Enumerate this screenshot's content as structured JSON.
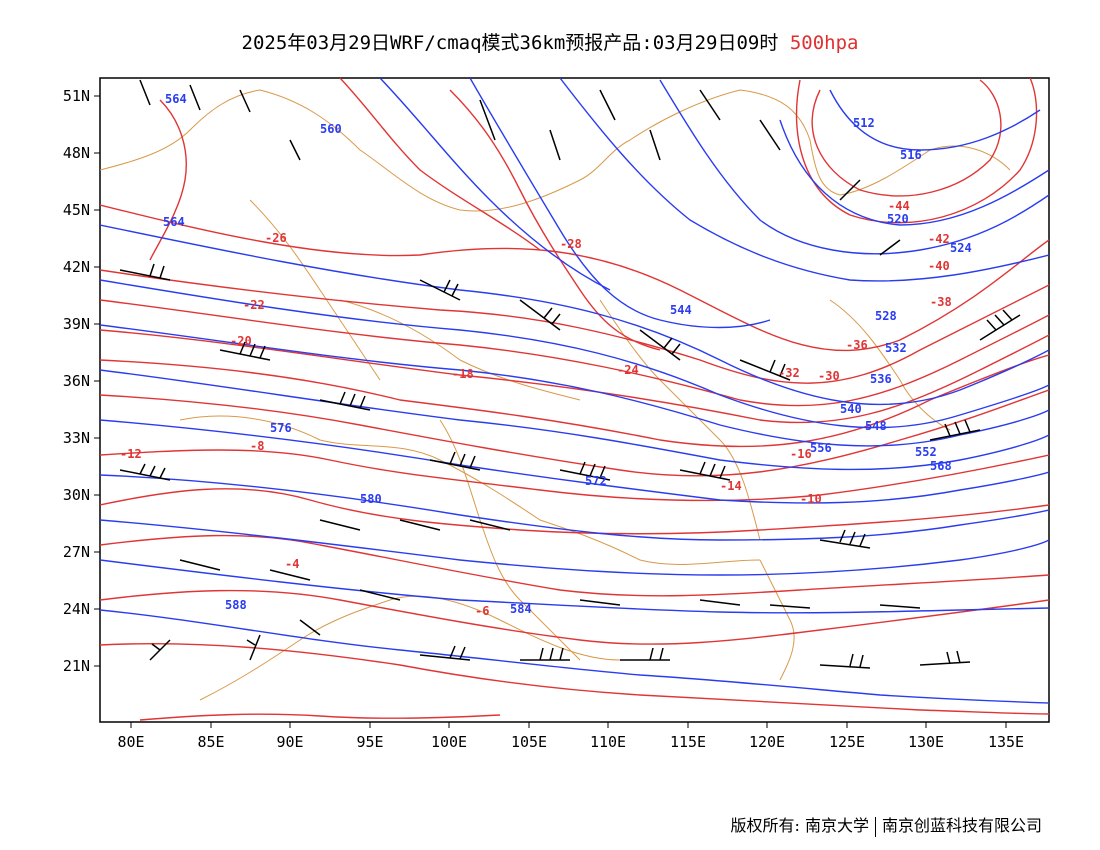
{
  "title": {
    "main": "2025年03月29日WRF/cmaq模式36km预报产品:03月29日09时",
    "level": "500hpa"
  },
  "colors": {
    "height_contours": "#2a3cf0",
    "temperature_contours": "#e03535",
    "boundaries": "#d89a4a",
    "wind_barbs": "#000000"
  },
  "axes": {
    "lon_ticks": [
      "80E",
      "85E",
      "90E",
      "95E",
      "100E",
      "105E",
      "110E",
      "115E",
      "120E",
      "125E",
      "130E",
      "135E"
    ],
    "lat_ticks": [
      "51N",
      "48N",
      "45N",
      "42N",
      "39N",
      "36N",
      "33N",
      "30N",
      "27N",
      "24N",
      "21N"
    ]
  },
  "height_labels": [
    "564",
    "560",
    "512",
    "516",
    "520",
    "524",
    "528",
    "532",
    "536",
    "540",
    "544",
    "548",
    "552",
    "556",
    "564",
    "568",
    "572",
    "576",
    "580",
    "584",
    "588"
  ],
  "temperature_labels": [
    "-44",
    "-42",
    "-40",
    "-38",
    "-36",
    "-32",
    "-30",
    "-28",
    "-26",
    "-24",
    "-22",
    "-20",
    "-18",
    "-16",
    "-14",
    "-12",
    "-10",
    "-8",
    "-6",
    "-4"
  ],
  "credit": {
    "owner": "版权所有: 南京大学",
    "partner": "南京创蓝科技有限公司"
  }
}
